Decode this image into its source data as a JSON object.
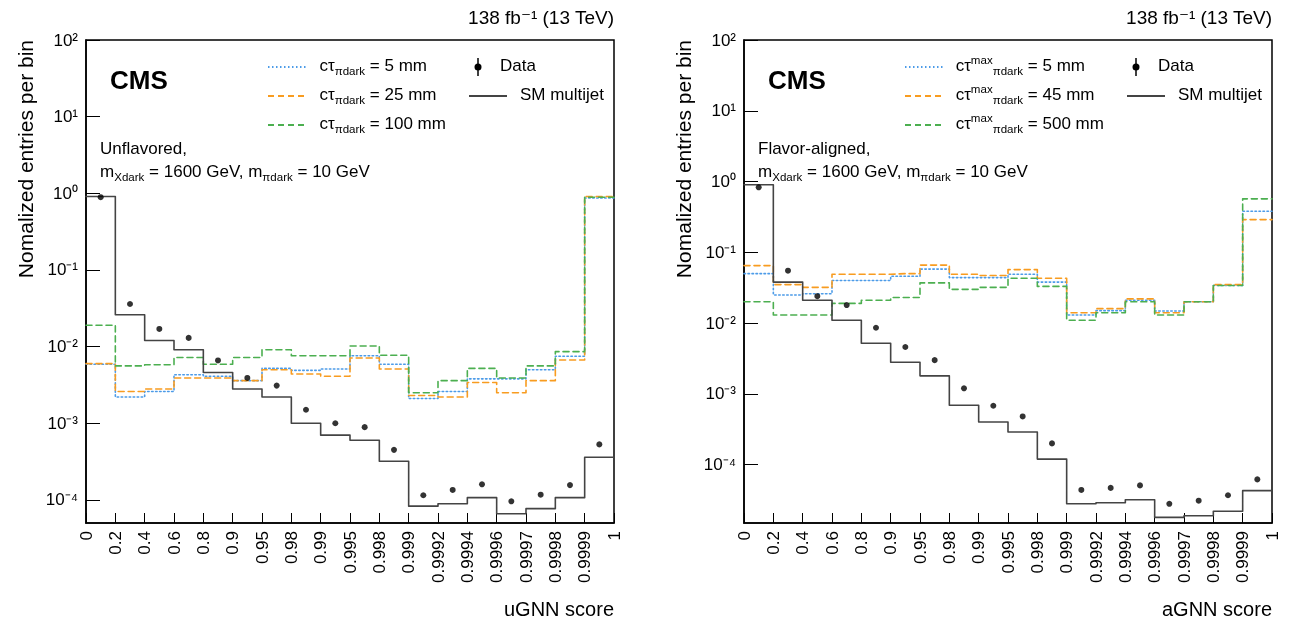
{
  "chart_data": [
    {
      "type": "step",
      "xlabel": "uGNN score",
      "ylabel": "Nomalized entries per bin",
      "legend": "top right",
      "grid": false,
      "log": "y",
      "annotations": [
        "138 fb⁻¹ (13 TeV)",
        "CMS",
        "Unflavored,",
        "m$_{X}$$_{dark}$ = 1600 GeV, m$_{π}$$_{dark}$ = 10 GeV"
      ],
      "categories": [
        "0",
        null,
        "0.2",
        null,
        "0.4",
        null,
        "0.6",
        null,
        "0.8",
        null,
        "0.9",
        null,
        "0.95",
        null,
        "0.98",
        null,
        "0.99",
        null,
        "0.995",
        null,
        "0.998",
        null,
        "0.999",
        null,
        "0.9992",
        null,
        "0.9994",
        null,
        "0.9996",
        null,
        "0.9997",
        null,
        "0.9998",
        null,
        "0.9999",
        null,
        "1"
      ],
      "ylim": [
        5e-05,
        100
      ],
      "yticks": [
        {
          "value": 0.0001,
          "label": "10⁻⁴"
        },
        {
          "value": 0.001,
          "label": "10⁻³"
        },
        {
          "value": 0.01,
          "label": "10⁻²"
        },
        {
          "value": 0.1,
          "label": "10⁻¹"
        },
        {
          "value": 1,
          "label": "10⁰"
        },
        {
          "value": 10,
          "label": "10¹"
        },
        {
          "value": 100,
          "label": "10²"
        }
      ],
      "series": [
        {
          "name": "cτ$_{π}$$_{dark}$ = 5 mm",
          "color": "#4c9be8",
          "line_style": "dotted",
          "values": [
            0.0059,
            0.0059,
            0.0022,
            0.0022,
            0.0026,
            0.0026,
            0.0043,
            0.0043,
            0.0041,
            0.0041,
            0.0036,
            0.0036,
            0.0052,
            0.0052,
            0.0049,
            0.0049,
            0.0051,
            0.0051,
            0.0076,
            0.0076,
            0.0059,
            0.0059,
            0.0021,
            0.0021,
            0.0026,
            0.0026,
            0.0038,
            0.0038,
            0.0038,
            0.0038,
            0.005,
            0.005,
            0.0075,
            0.0075,
            0.87,
            0.87,
            0.87
          ]
        },
        {
          "name": "cτ$_{π}$$_{dark}$ = 25 mm",
          "color": "#f89c20",
          "line_style": "dashed",
          "values": [
            0.006,
            0.006,
            0.0026,
            0.0026,
            0.0028,
            0.0028,
            0.0039,
            0.0039,
            0.0039,
            0.0039,
            0.0036,
            0.0036,
            0.005,
            0.005,
            0.0044,
            0.0044,
            0.0041,
            0.0041,
            0.0071,
            0.0071,
            0.0051,
            0.0051,
            0.0023,
            0.0023,
            0.0022,
            0.0022,
            0.0034,
            0.0034,
            0.0025,
            0.0025,
            0.0036,
            0.0036,
            0.0067,
            0.0067,
            0.91,
            0.91,
            0.91
          ]
        },
        {
          "name": "cτ$_{π}$$_{dark}$ = 100 mm",
          "color": "#4caf50",
          "line_style": "dashed",
          "values": [
            0.019,
            0.019,
            0.0056,
            0.0056,
            0.0058,
            0.0058,
            0.0072,
            0.0072,
            0.0059,
            0.0059,
            0.0072,
            0.0072,
            0.0091,
            0.0091,
            0.0076,
            0.0076,
            0.0076,
            0.0076,
            0.0102,
            0.0102,
            0.0077,
            0.0077,
            0.0025,
            0.0025,
            0.0036,
            0.0036,
            0.0052,
            0.0052,
            0.0039,
            0.0039,
            0.0056,
            0.0056,
            0.0086,
            0.0086,
            0.89,
            0.89,
            0.89
          ]
        },
        {
          "name": "Data",
          "type": "scatter",
          "color": "#000000",
          "marker": "circle",
          "values": [
            null,
            0.89,
            null,
            0.036,
            null,
            0.017,
            null,
            0.013,
            null,
            0.0066,
            null,
            0.0039,
            null,
            0.0031,
            null,
            0.0015,
            null,
            0.001,
            null,
            0.00089,
            null,
            0.00045,
            null,
            0.000115,
            null,
            0.000135,
            null,
            0.00016,
            null,
            9.6e-05,
            null,
            0.000117,
            null,
            0.000156,
            null,
            0.00053,
            null
          ]
        },
        {
          "name": "SM multijet",
          "color": "#444444",
          "line_style": "solid",
          "values": [
            0.91,
            0.91,
            0.026,
            0.026,
            0.012,
            0.012,
            0.0091,
            0.0091,
            0.0046,
            0.0046,
            0.0028,
            0.0028,
            0.0022,
            0.0022,
            0.001,
            0.001,
            0.0007,
            0.0007,
            0.0006,
            0.0006,
            0.00032,
            0.00032,
            8.3e-05,
            8.3e-05,
            8.9e-05,
            8.9e-05,
            0.000107,
            0.000107,
            6.6e-05,
            6.6e-05,
            7.7e-05,
            7.7e-05,
            0.000107,
            0.000107,
            0.00036,
            0.00036,
            0.00036
          ]
        }
      ]
    },
    {
      "type": "step",
      "xlabel": "aGNN score",
      "ylabel": "Nomalized entries per bin",
      "legend": "top right",
      "grid": false,
      "log": "y",
      "annotations": [
        "138 fb⁻¹ (13 TeV)",
        "CMS",
        "Flavor-aligned,",
        "m$_{X}$$_{dark}$ = 1600 GeV, m$_{π}$$_{dark}$ = 10 GeV"
      ],
      "categories": [
        "0",
        null,
        "0.2",
        null,
        "0.4",
        null,
        "0.6",
        null,
        "0.8",
        null,
        "0.9",
        null,
        "0.95",
        null,
        "0.98",
        null,
        "0.99",
        null,
        "0.995",
        null,
        "0.998",
        null,
        "0.999",
        null,
        "0.9992",
        null,
        "0.9994",
        null,
        "0.9996",
        null,
        "0.9997",
        null,
        "0.9998",
        null,
        "0.9999",
        null,
        "1"
      ],
      "ylim": [
        1.5e-05,
        100
      ],
      "yticks": [
        {
          "value": 0.0001,
          "label": "10⁻⁴"
        },
        {
          "value": 0.001,
          "label": "10⁻³"
        },
        {
          "value": 0.01,
          "label": "10⁻²"
        },
        {
          "value": 0.1,
          "label": "10⁻¹"
        },
        {
          "value": 1,
          "label": "10⁰"
        },
        {
          "value": 10,
          "label": "10¹"
        },
        {
          "value": 100,
          "label": "10²"
        }
      ],
      "series": [
        {
          "name": "cτ$^{max}$$_{π}$$_{dark}$ = 5 mm",
          "color": "#4c9be8",
          "line_style": "dotted",
          "values": [
            0.05,
            0.05,
            0.025,
            0.025,
            0.026,
            0.026,
            0.04,
            0.04,
            0.04,
            0.04,
            0.046,
            0.046,
            0.058,
            0.058,
            0.044,
            0.044,
            0.044,
            0.044,
            0.049,
            0.049,
            0.038,
            0.038,
            0.013,
            0.013,
            0.015,
            0.015,
            0.021,
            0.021,
            0.0148,
            0.0148,
            0.02,
            0.02,
            0.034,
            0.034,
            0.38,
            0.38,
            0.38
          ]
        },
        {
          "name": "cτ$^{max}$$_{π}$$_{dark}$ = 45 mm",
          "color": "#f89c20",
          "line_style": "dashed",
          "values": [
            0.065,
            0.065,
            0.035,
            0.035,
            0.032,
            0.032,
            0.049,
            0.049,
            0.049,
            0.049,
            0.05,
            0.05,
            0.066,
            0.066,
            0.049,
            0.049,
            0.047,
            0.047,
            0.057,
            0.057,
            0.043,
            0.043,
            0.014,
            0.014,
            0.016,
            0.016,
            0.022,
            0.022,
            0.014,
            0.014,
            0.02,
            0.02,
            0.035,
            0.035,
            0.29,
            0.29,
            0.29
          ]
        },
        {
          "name": "cτ$^{max}$$_{π}$$_{dark}$ = 500 mm",
          "color": "#4caf50",
          "line_style": "dashed",
          "values": [
            0.02,
            0.02,
            0.013,
            0.013,
            0.013,
            0.013,
            0.019,
            0.019,
            0.021,
            0.021,
            0.023,
            0.023,
            0.037,
            0.037,
            0.03,
            0.03,
            0.032,
            0.032,
            0.043,
            0.043,
            0.033,
            0.033,
            0.011,
            0.011,
            0.014,
            0.014,
            0.02,
            0.02,
            0.013,
            0.013,
            0.02,
            0.02,
            0.034,
            0.034,
            0.57,
            0.57,
            0.57
          ]
        },
        {
          "name": "Data",
          "type": "scatter",
          "color": "#000000",
          "marker": "circle",
          "values": [
            null,
            0.83,
            null,
            0.055,
            null,
            0.024,
            null,
            0.018,
            null,
            0.0086,
            null,
            0.0046,
            null,
            0.003,
            null,
            0.0012,
            null,
            0.00068,
            null,
            0.00048,
            null,
            0.0002,
            null,
            4.4e-05,
            null,
            4.7e-05,
            null,
            5.1e-05,
            null,
            2.8e-05,
            null,
            3.1e-05,
            null,
            3.7e-05,
            null,
            6.2e-05,
            null
          ]
        },
        {
          "name": "SM multijet",
          "color": "#444444",
          "line_style": "solid",
          "values": [
            0.9,
            0.9,
            0.038,
            0.038,
            0.021,
            0.021,
            0.011,
            0.011,
            0.0052,
            0.0052,
            0.0028,
            0.0028,
            0.0018,
            0.0018,
            0.00069,
            0.00069,
            0.0004,
            0.0004,
            0.00029,
            0.00029,
            0.00012,
            0.00012,
            2.8e-05,
            2.8e-05,
            2.9e-05,
            2.9e-05,
            3.2e-05,
            3.2e-05,
            1.8e-05,
            1.8e-05,
            1.9e-05,
            1.9e-05,
            2.2e-05,
            2.2e-05,
            4.3e-05,
            4.3e-05,
            4.3e-05
          ]
        }
      ]
    }
  ]
}
